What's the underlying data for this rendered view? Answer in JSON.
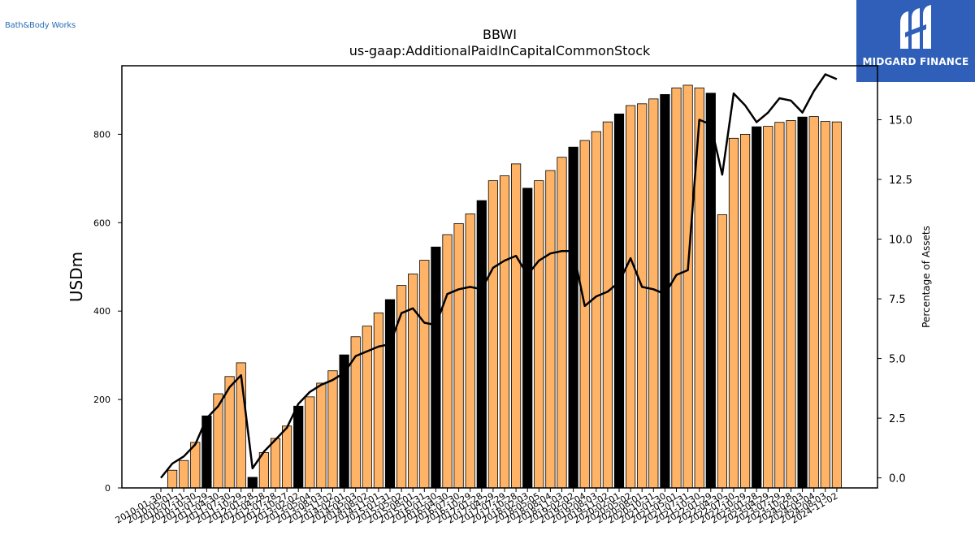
{
  "brand": {
    "logo_text": "Bath&Body Works"
  },
  "badge": {
    "name": "MIDGARD FINANCE",
    "color": "#2f5fb8"
  },
  "chart_data": {
    "type": "bar",
    "title": "BBWI",
    "subtitle": "us-gaap:AdditionalPaidInCapitalCommonStock",
    "ylabel": "USDm",
    "y2label": "Percentage of Assets",
    "ylim": [
      0,
      955
    ],
    "y_ticks": [
      0,
      200,
      400,
      600,
      800
    ],
    "y2lim": [
      -0.42,
      17.26
    ],
    "y2_ticks": [
      0.0,
      2.5,
      5.0,
      7.5,
      10.0,
      12.5,
      15.0
    ],
    "y2_tick_labels": [
      "0.0",
      "2.5",
      "5.0",
      "7.5",
      "10.0",
      "12.5",
      "15.0"
    ],
    "grid": false,
    "colors": {
      "quarterly": "#ffb366",
      "annual": "#000000",
      "line": "#000000"
    },
    "categories": [
      "2010-01-30",
      "2010-05-01",
      "2010-07-31",
      "2010-10-30",
      "2011-01-29",
      "2011-04-30",
      "2011-07-30",
      "2011-10-29",
      "2012-01-28",
      "2012-04-28",
      "2012-07-28",
      "2012-10-27",
      "2013-02-02",
      "2013-05-04",
      "2013-08-03",
      "2013-11-02",
      "2014-02-01",
      "2014-05-03",
      "2014-08-02",
      "2014-11-01",
      "2015-01-31",
      "2015-05-02",
      "2015-08-01",
      "2015-10-31",
      "2016-01-30",
      "2016-04-30",
      "2016-07-30",
      "2016-10-29",
      "2017-01-28",
      "2017-04-29",
      "2017-07-29",
      "2017-10-28",
      "2018-02-03",
      "2018-05-05",
      "2018-08-04",
      "2018-11-03",
      "2019-02-02",
      "2019-05-04",
      "2019-08-03",
      "2019-11-02",
      "2020-02-01",
      "2020-05-02",
      "2020-08-01",
      "2020-10-31",
      "2021-01-30",
      "2021-05-01",
      "2021-07-31",
      "2021-10-30",
      "2022-01-29",
      "2022-04-30",
      "2022-07-30",
      "2022-10-29",
      "2023-01-28",
      "2023-04-29",
      "2023-07-29",
      "2023-10-28",
      "2024-02-03",
      "2024-05-04",
      "2024-08-03",
      "2024-11-02"
    ],
    "x_tick_labels": [
      "2010-01-30",
      "2010-05-01",
      "2010-07-31",
      "2010-10-30",
      "2011-01-29",
      "2011-04-30",
      "2011-07-30",
      "2011-10-29",
      "2012-01-28",
      "2012-04-28",
      "2012-07-28",
      "2012-10-27",
      "2013-02-02",
      "2013-05-04",
      "2013-08-03",
      "2013-11-02",
      "2014-02-01",
      "2014-05-03",
      "2014-08-02",
      "2014-11-01",
      "2015-01-31",
      "2015-05-02",
      "2015-08-01",
      "2015-10-31",
      "2016-01-30",
      "2016-04-30",
      "2016-07-30",
      "2016-10-29",
      "2017-01-28",
      "2017-04-29",
      "2017-07-29",
      "2017-10-28",
      "2018-02-03",
      "2018-05-05",
      "2018-08-04",
      "2018-11-03",
      "2019-02-02",
      "2019-05-04",
      "2019-08-03",
      "2019-11-02",
      "2020-02-01",
      "2020-05-02",
      "2020-08-01",
      "2020-10-31",
      "2021-01-30",
      "2021-05-01",
      "2021-07-31",
      "2021-10-30",
      "2022-01-29",
      "2022-04-30",
      "2022-07-30",
      "2022-10-29",
      "2023-01-28",
      "2023-04-29",
      "2023-07-29",
      "2023-10-28",
      "2024-02-03",
      "2024-05-04",
      "2024-08-03",
      "2024-11-02"
    ],
    "series": [
      {
        "type": "bar",
        "axis": "left",
        "values": [
          0,
          40,
          62,
          103,
          163,
          213,
          252,
          283,
          24,
          80,
          112,
          140,
          185,
          206,
          237,
          265,
          301,
          342,
          366,
          396,
          426,
          458,
          484,
          515,
          545,
          573,
          598,
          620,
          650,
          695,
          706,
          733,
          678,
          695,
          718,
          748,
          771,
          786,
          806,
          828,
          846,
          865,
          869,
          880,
          890,
          905,
          911,
          905,
          893,
          618,
          791,
          800,
          817,
          818,
          827,
          831,
          839,
          840,
          829,
          828
        ],
        "annual": [
          false,
          false,
          false,
          false,
          true,
          false,
          false,
          false,
          true,
          false,
          false,
          false,
          true,
          false,
          false,
          false,
          true,
          false,
          false,
          false,
          true,
          false,
          false,
          false,
          true,
          false,
          false,
          false,
          true,
          false,
          false,
          false,
          true,
          false,
          false,
          false,
          true,
          false,
          false,
          false,
          true,
          false,
          false,
          false,
          true,
          false,
          false,
          false,
          true,
          false,
          false,
          false,
          true,
          false,
          false,
          false,
          true,
          false,
          false,
          false
        ]
      },
      {
        "type": "line",
        "axis": "right",
        "values": [
          0.0,
          0.6,
          0.9,
          1.4,
          2.5,
          3.0,
          3.8,
          4.3,
          0.4,
          1.1,
          1.6,
          2.1,
          3.1,
          3.6,
          3.9,
          4.1,
          4.4,
          5.1,
          5.3,
          5.5,
          5.6,
          6.9,
          7.1,
          6.5,
          6.4,
          7.7,
          7.9,
          8.0,
          7.9,
          8.8,
          9.1,
          9.3,
          8.5,
          9.1,
          9.4,
          9.5,
          9.5,
          7.2,
          7.6,
          7.8,
          8.2,
          9.2,
          8.0,
          7.9,
          7.7,
          8.5,
          8.7,
          15.0,
          14.8,
          12.7,
          16.1,
          15.6,
          14.9,
          15.3,
          15.9,
          15.8,
          15.3,
          16.2,
          16.9,
          16.7
        ]
      }
    ]
  }
}
